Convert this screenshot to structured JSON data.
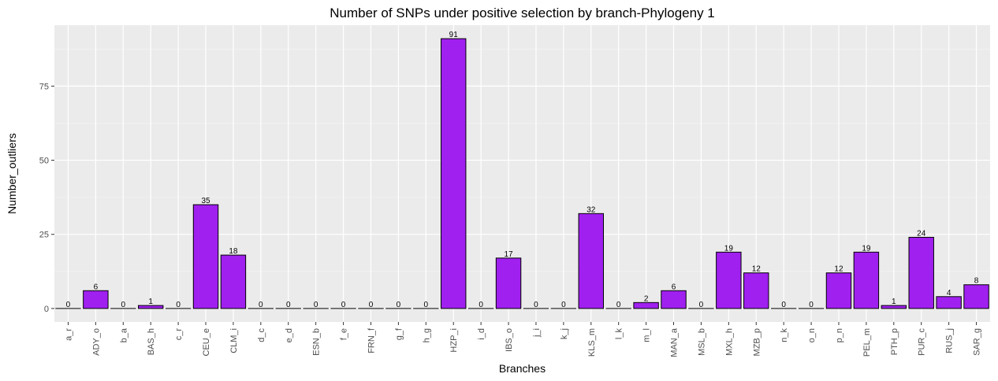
{
  "chart_data": {
    "type": "bar",
    "title": "Number of SNPs under positive selection by branch-Phylogeny 1",
    "xlabel": "Branches",
    "ylabel": "Number_outliers",
    "categories": [
      "a_r",
      "ADY_o",
      "b_a",
      "BAS_h",
      "c_r",
      "CEU_e",
      "CLM_i",
      "d_c",
      "e_d",
      "ESN_b",
      "f_e",
      "FRN_f",
      "g_f",
      "h_g",
      "HZP_i",
      "i_d",
      "IBS_o",
      "j_i",
      "k_j",
      "KLS_m",
      "l_k",
      "m_l",
      "MAN_a",
      "MSL_b",
      "MXL_h",
      "MZB_p",
      "n_k",
      "o_n",
      "p_n",
      "PEL_m",
      "PTH_p",
      "PUR_c",
      "RUS_j",
      "SAR_g"
    ],
    "values": [
      0,
      6,
      0,
      1,
      0,
      35,
      18,
      0,
      0,
      0,
      0,
      0,
      0,
      0,
      91,
      0,
      17,
      0,
      0,
      32,
      0,
      2,
      6,
      0,
      19,
      12,
      0,
      0,
      12,
      19,
      1,
      24,
      4,
      8
    ],
    "data_labels": [
      "0",
      "6",
      "0",
      "1",
      "0",
      "35",
      "18",
      "0",
      "0",
      "0",
      "0",
      "0",
      "0",
      "0",
      "91",
      "0",
      "17",
      "0",
      "0",
      "32",
      "0",
      "2",
      "6",
      "0",
      "19",
      "12",
      "0",
      "0",
      "12",
      "19",
      "1",
      "24",
      "4",
      "8"
    ],
    "yticks": [
      0,
      25,
      50,
      75
    ],
    "ytick_labels": [
      "0",
      "25",
      "50",
      "75"
    ],
    "ylim": [
      -4.55,
      95.55
    ],
    "grid": true,
    "legend": "none",
    "colors": {
      "bar_fill": "#a020f0",
      "bar_stroke": "#000000",
      "panel_bg": "#ebebeb",
      "grid_major": "#ffffff",
      "grid_minor": "#f5f5f5"
    }
  }
}
